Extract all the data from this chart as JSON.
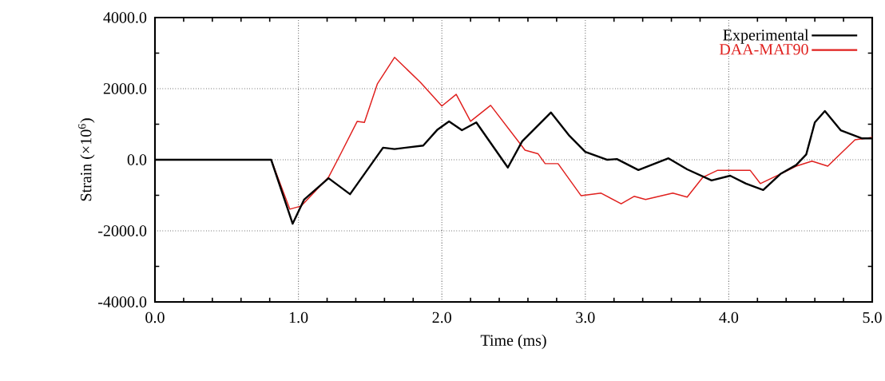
{
  "chart_data": {
    "type": "line",
    "xlabel": "Time (ms)",
    "ylabel": "Strain (×10$^{6}$)",
    "xlim": [
      0,
      5
    ],
    "ylim": [
      -4000,
      4000
    ],
    "xticks": [
      {
        "value": 0,
        "label": "0.0"
      },
      {
        "value": 1,
        "label": "1.0"
      },
      {
        "value": 2,
        "label": "2.0"
      },
      {
        "value": 3,
        "label": "3.0"
      },
      {
        "value": 4,
        "label": "4.0"
      },
      {
        "value": 5,
        "label": "5.0"
      }
    ],
    "yticks": [
      {
        "value": -4000,
        "label": "-4000.0"
      },
      {
        "value": -2000,
        "label": "-2000.0"
      },
      {
        "value": 0,
        "label": "0.0"
      },
      {
        "value": 2000,
        "label": "2000.0"
      },
      {
        "value": 4000,
        "label": "4000.0"
      }
    ],
    "grid": true,
    "legend": "top right",
    "marker": "none",
    "line_style": "solid",
    "series": [
      {
        "name": "Experimental",
        "color": "#000000",
        "x": [
          0,
          0.81,
          0.96,
          1.04,
          1.21,
          1.36,
          1.59,
          1.67,
          1.87,
          1.97,
          2.05,
          2.14,
          2.24,
          2.46,
          2.56,
          2.76,
          2.89,
          3.0,
          3.15,
          3.22,
          3.37,
          3.58,
          3.71,
          3.88,
          4.01,
          4.12,
          4.24,
          4.36,
          4.47,
          4.54,
          4.6,
          4.67,
          4.78,
          4.93,
          5.0
        ],
        "values": [
          0,
          0,
          -1800,
          -1120,
          -520,
          -970,
          340,
          300,
          400,
          850,
          1080,
          830,
          1050,
          -220,
          520,
          1330,
          670,
          220,
          0,
          20,
          -290,
          40,
          -270,
          -580,
          -450,
          -670,
          -850,
          -400,
          -150,
          150,
          1050,
          1370,
          830,
          600,
          600
        ]
      },
      {
        "name": "DAA-MAT90",
        "color": "#e0201e",
        "x": [
          0.6,
          0.81,
          0.94,
          1.02,
          1.21,
          1.28,
          1.41,
          1.46,
          1.55,
          1.67,
          1.85,
          2.0,
          2.1,
          2.2,
          2.34,
          2.58,
          2.67,
          2.72,
          2.81,
          2.97,
          3.11,
          3.25,
          3.34,
          3.42,
          3.61,
          3.71,
          3.82,
          3.92,
          4.03,
          4.15,
          4.22,
          4.36,
          4.47,
          4.58,
          4.69,
          4.88,
          5.0
        ],
        "values": [
          0,
          0,
          -1390,
          -1300,
          -490,
          50,
          1080,
          1050,
          2130,
          2880,
          2180,
          1510,
          1840,
          1080,
          1530,
          270,
          170,
          -110,
          -110,
          -1010,
          -940,
          -1240,
          -1030,
          -1120,
          -940,
          -1050,
          -490,
          -300,
          -300,
          -300,
          -670,
          -400,
          -180,
          -40,
          -180,
          560,
          630
        ]
      }
    ]
  }
}
